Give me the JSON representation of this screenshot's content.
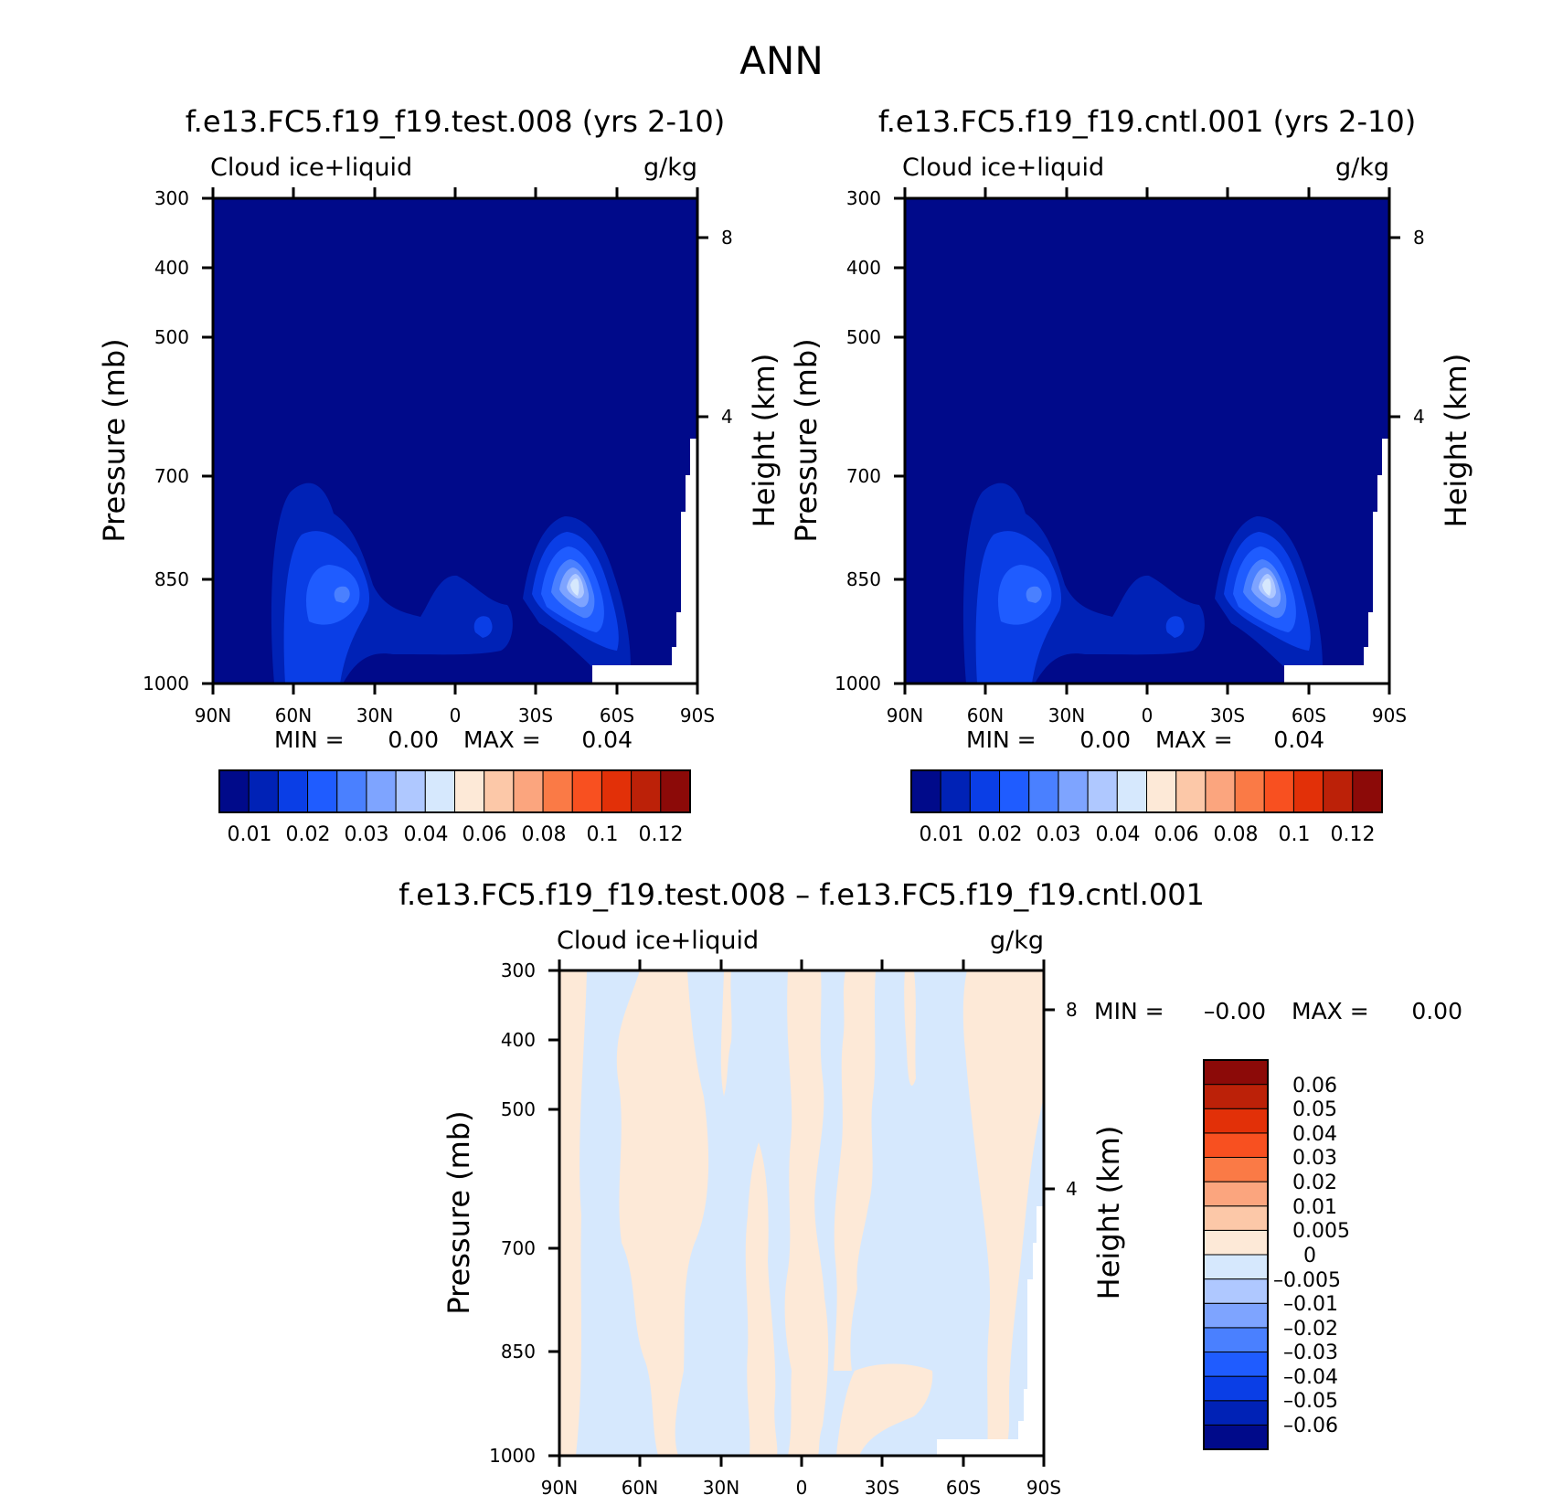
{
  "figure_title": "ANN",
  "colors": {
    "frame": "#000000",
    "missing": "#ffffff",
    "abs_palette": [
      "#000a8a",
      "#0022b6",
      "#0a3ee6",
      "#1f5cff",
      "#4a80ff",
      "#7ea4ff",
      "#afc8ff",
      "#d6e8fd",
      "#fde9d7",
      "#fcc8a8",
      "#fba57e",
      "#fa7a46",
      "#f85020",
      "#e23008",
      "#bc2108",
      "#8c0a08"
    ],
    "diff_palette": [
      "#000a8a",
      "#0022b6",
      "#0a3ee6",
      "#1f5cff",
      "#4a80ff",
      "#7ea4ff",
      "#afc8ff",
      "#d6e8fd",
      "#fde9d7",
      "#fcc8a8",
      "#fba57e",
      "#fa7a46",
      "#f85020",
      "#e23008",
      "#bc2108",
      "#8c0a08"
    ]
  },
  "chart_data": [
    {
      "id": "test",
      "type": "heatmap",
      "title": "f.e13.FC5.f19_f19.test.008 (yrs 2-10)",
      "left_string": "Cloud ice+liquid",
      "right_string": "g/kg",
      "xlabel": "",
      "ylabel": "Pressure (mb)",
      "y2label": "Height (km)",
      "x_ticklabels": [
        "90N",
        "60N",
        "30N",
        "0",
        "30S",
        "60S",
        "90S"
      ],
      "y_ticklabels": [
        "300",
        "400",
        "500",
        "700",
        "850",
        "1000"
      ],
      "y2_ticklabels": [
        "8",
        "4"
      ],
      "ylim": [
        1000,
        300
      ],
      "min_label": "MIN =",
      "min_value": "0.00",
      "max_label": "MAX =",
      "max_value": "0.04",
      "colorbar_labels": [
        "0.01",
        "0.02",
        "0.03",
        "0.04",
        "0.06",
        "0.08",
        "0.1",
        "0.12"
      ],
      "field": "cloud_ice_liquid_abs",
      "colormap": "abs_palette"
    },
    {
      "id": "cntl",
      "type": "heatmap",
      "title": "f.e13.FC5.f19_f19.cntl.001 (yrs 2-10)",
      "left_string": "Cloud ice+liquid",
      "right_string": "g/kg",
      "xlabel": "",
      "ylabel": "Pressure (mb)",
      "y2label": "Height (km)",
      "x_ticklabels": [
        "90N",
        "60N",
        "30N",
        "0",
        "30S",
        "60S",
        "90S"
      ],
      "y_ticklabels": [
        "300",
        "400",
        "500",
        "700",
        "850",
        "1000"
      ],
      "y2_ticklabels": [
        "8",
        "4"
      ],
      "ylim": [
        1000,
        300
      ],
      "min_label": "MIN =",
      "min_value": "0.00",
      "max_label": "MAX =",
      "max_value": "0.04",
      "colorbar_labels": [
        "0.01",
        "0.02",
        "0.03",
        "0.04",
        "0.06",
        "0.08",
        "0.1",
        "0.12"
      ],
      "field": "cloud_ice_liquid_abs",
      "colormap": "abs_palette"
    },
    {
      "id": "diff",
      "type": "heatmap",
      "title": "f.e13.FC5.f19_f19.test.008 – f.e13.FC5.f19_f19.cntl.001",
      "left_string": "Cloud ice+liquid",
      "right_string": "g/kg",
      "xlabel": "",
      "ylabel": "Pressure (mb)",
      "y2label": "Height (km)",
      "x_ticklabels": [
        "90N",
        "60N",
        "30N",
        "0",
        "30S",
        "60S",
        "90S"
      ],
      "y_ticklabels": [
        "300",
        "400",
        "500",
        "700",
        "850",
        "1000"
      ],
      "y2_ticklabels": [
        "8",
        "4"
      ],
      "ylim": [
        1000,
        300
      ],
      "min_label": "MIN =",
      "min_value": "–0.00",
      "max_label": "MAX =",
      "max_value": "0.00",
      "colorbar_labels": [
        "0.06",
        "0.05",
        "0.04",
        "0.03",
        "0.02",
        "0.01",
        "0.005",
        "0",
        "–0.005",
        "–0.01",
        "–0.02",
        "–0.03",
        "–0.04",
        "–0.05",
        "–0.06"
      ],
      "field": "cloud_ice_liquid_diff",
      "colormap": "diff_palette"
    }
  ]
}
